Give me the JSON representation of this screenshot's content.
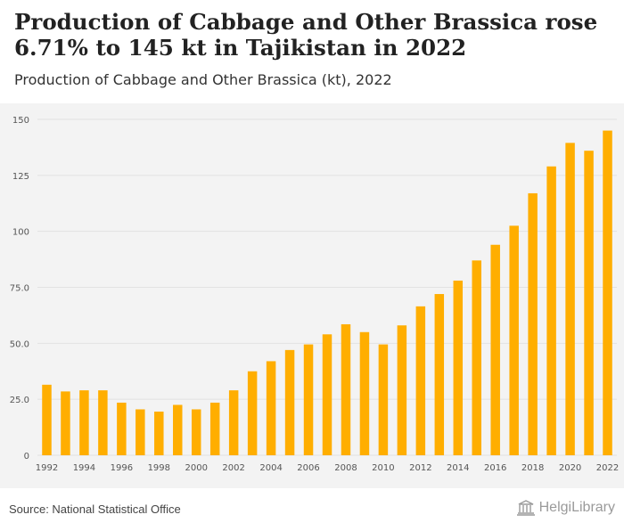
{
  "header": {
    "headline": "Production of Cabbage and Other Brassica rose 6.71% to 145 kt in Tajikistan in 2022",
    "subtitle": "Production of Cabbage and Other Brassica (kt), 2022"
  },
  "footer": {
    "source": "Source: National Statistical Office",
    "brand": "HelgiLibrary"
  },
  "chart_data": {
    "type": "bar",
    "title": "Production of Cabbage and Other Brassica (kt), 2022",
    "categories": [
      "1992",
      "1993",
      "1994",
      "1995",
      "1996",
      "1997",
      "1998",
      "1999",
      "2000",
      "2001",
      "2002",
      "2003",
      "2004",
      "2005",
      "2006",
      "2007",
      "2008",
      "2009",
      "2010",
      "2011",
      "2012",
      "2013",
      "2014",
      "2015",
      "2016",
      "2017",
      "2018",
      "2019",
      "2020",
      "2021",
      "2022"
    ],
    "series": [
      {
        "values": [
          31.5,
          28.5,
          29.0,
          29.0,
          23.5,
          20.5,
          19.5,
          22.5,
          20.5,
          23.5,
          29.0,
          37.5,
          42.0,
          47.0,
          49.5,
          54.0,
          58.5,
          55.0,
          49.5,
          58.0,
          66.5,
          72.0,
          78.0,
          87.0,
          94.0,
          102.5,
          117.0,
          129.0,
          139.5,
          136.0,
          145.0
        ]
      }
    ],
    "x_tick_labels": [
      "1992",
      "1994",
      "1996",
      "1998",
      "2000",
      "2002",
      "2004",
      "2006",
      "2008",
      "2010",
      "2012",
      "2014",
      "2016",
      "2018",
      "2020",
      "2022"
    ],
    "y_ticks": [
      0,
      25,
      50,
      75,
      100,
      125,
      150
    ],
    "y_tick_labels": [
      "0",
      "25.0",
      "50.0",
      "75.0",
      "100",
      "125",
      "150"
    ],
    "ylim": [
      0,
      150
    ],
    "xlabel": "",
    "ylabel": "",
    "grid": true,
    "legend": "none",
    "colors": {
      "bar": "#FFAE00",
      "grid": "#e2e2e2",
      "axis_text": "#555555"
    }
  }
}
